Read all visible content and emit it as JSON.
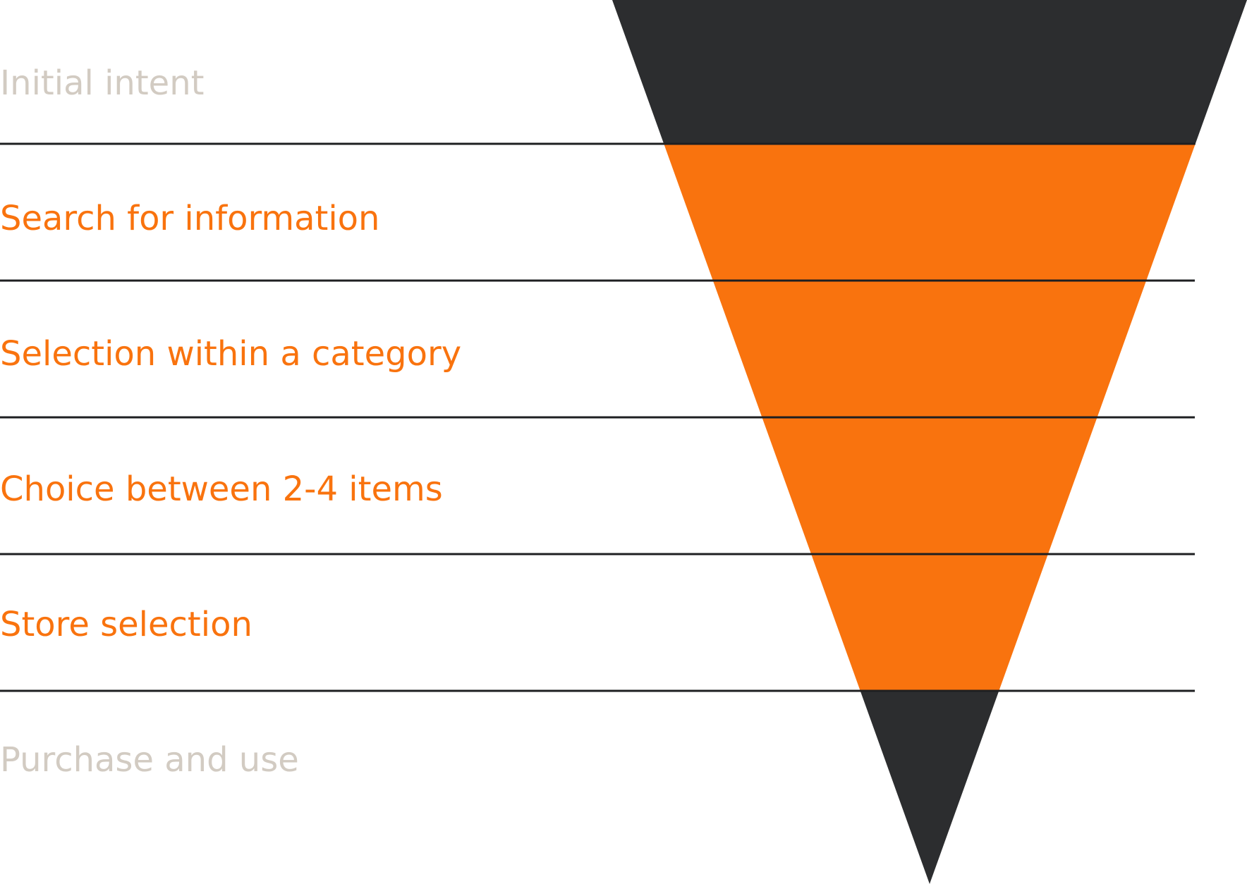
{
  "colors": {
    "dark": "#2c2d2f",
    "accent": "#f9730e",
    "muted": "#d2cbc2",
    "divider": "#1e1f21"
  },
  "funnel": {
    "stages": [
      {
        "label": "Initial intent",
        "tone": "muted",
        "fill": "dark"
      },
      {
        "label": "Search for information",
        "tone": "accent",
        "fill": "accent"
      },
      {
        "label": "Selection within a category",
        "tone": "accent",
        "fill": "accent"
      },
      {
        "label": "Choice between 2-4 items",
        "tone": "accent",
        "fill": "accent"
      },
      {
        "label": "Store selection",
        "tone": "accent",
        "fill": "accent"
      },
      {
        "label": "Purchase and use",
        "tone": "muted",
        "fill": "dark"
      }
    ]
  }
}
